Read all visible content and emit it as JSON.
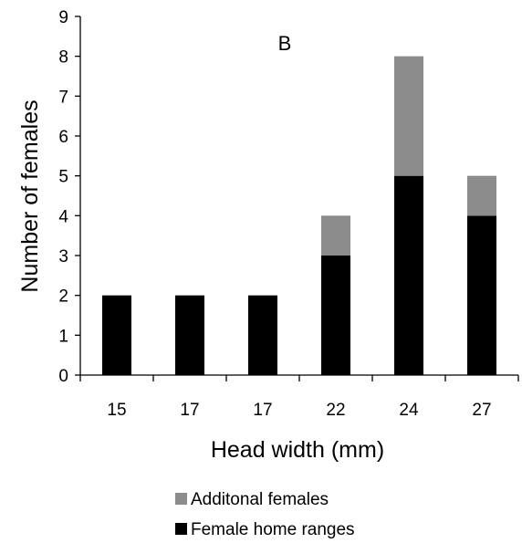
{
  "chart_data": {
    "type": "bar",
    "stacked": true,
    "panel_label": "B",
    "title": "",
    "xlabel": "Head width (mm)",
    "ylabel": "Number of females",
    "categories": [
      "15",
      "17",
      "17",
      "22",
      "24",
      "27"
    ],
    "series": [
      {
        "name": "Female home ranges",
        "values": [
          2,
          2,
          2,
          3,
          5,
          4
        ],
        "color": "#000000"
      },
      {
        "name": "Additonal females",
        "values": [
          0,
          0,
          0,
          1,
          3,
          1
        ],
        "color": "#8c8c8c"
      }
    ],
    "ylim": [
      0,
      9
    ],
    "yticks": [
      0,
      1,
      2,
      3,
      4,
      5,
      6,
      7,
      8,
      9
    ],
    "grid": false,
    "legend": {
      "position": "bottom",
      "items": [
        "Additonal females",
        "Female home ranges"
      ]
    }
  }
}
